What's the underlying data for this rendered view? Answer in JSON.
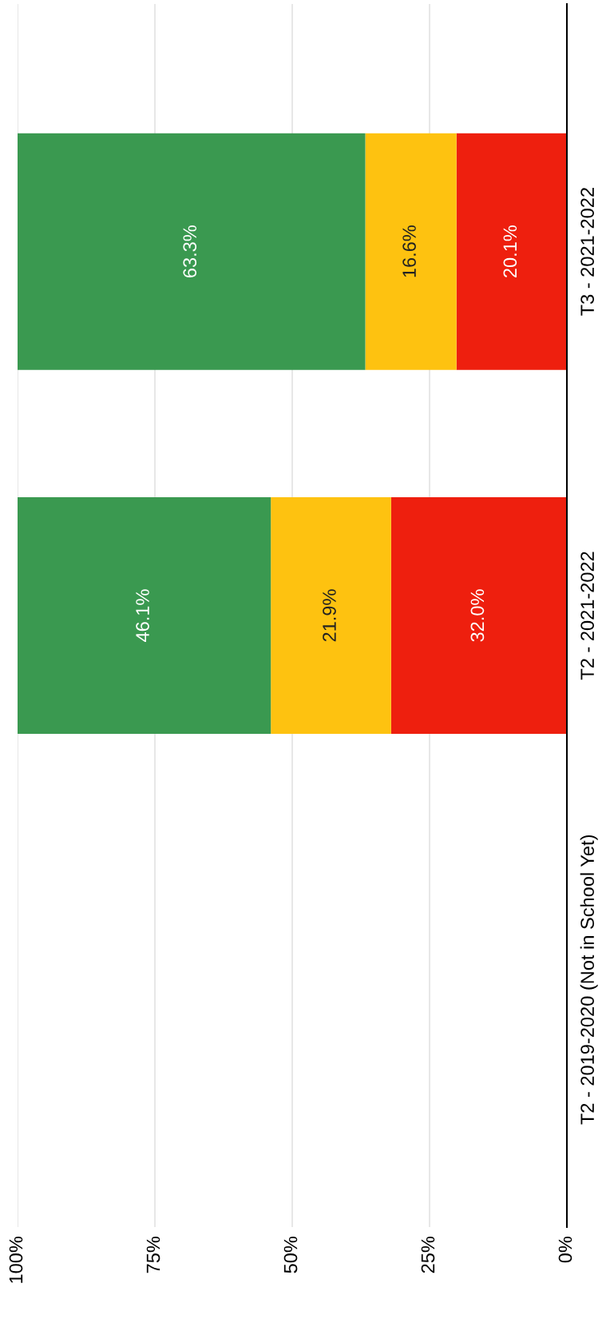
{
  "chart_data": {
    "type": "bar",
    "orientation": "horizontal",
    "stacked": true,
    "categories": [
      "T3 - 2021-2022",
      "T2 - 2021-2022",
      "T2 - 2019-2020 (Not in School Yet)"
    ],
    "series": [
      {
        "color": "#ee1f0e",
        "values": [
          20.1,
          32.0,
          null
        ],
        "value_labels": [
          "20.1%",
          "32.0%",
          null
        ]
      },
      {
        "color": "#fec210",
        "values": [
          16.6,
          21.9,
          null
        ],
        "value_labels": [
          "16.6%",
          "21.9%",
          null
        ]
      },
      {
        "color": "#3a9950",
        "values": [
          63.3,
          46.1,
          null
        ],
        "value_labels": [
          "63.3%",
          "46.1%",
          null
        ]
      }
    ],
    "xlim": [
      100,
      0
    ],
    "xticks": [
      {
        "value": 0,
        "label": "0%"
      },
      {
        "value": 25,
        "label": "25%"
      },
      {
        "value": 50,
        "label": "50%"
      },
      {
        "value": 75,
        "label": "75%"
      },
      {
        "value": 100,
        "label": "100%"
      }
    ],
    "grid": "x"
  }
}
